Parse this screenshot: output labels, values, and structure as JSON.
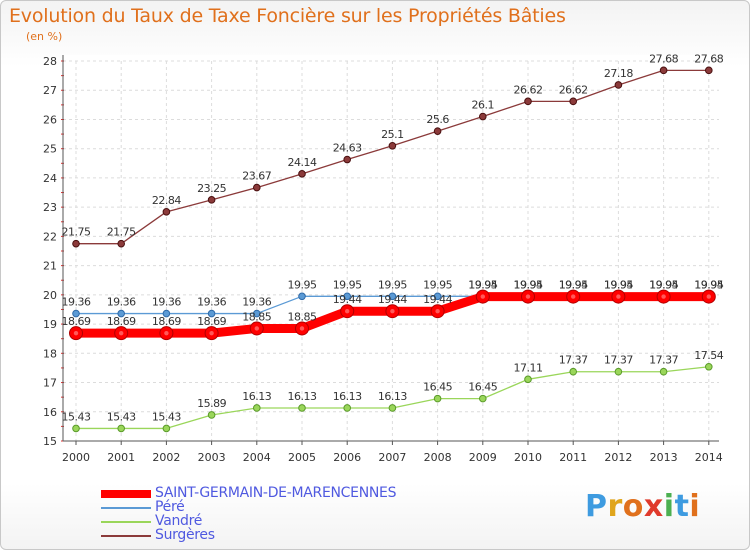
{
  "title": "Evolution du Taux de Taxe Foncière sur les Propriétés Bâties",
  "unit_label": "(en %)",
  "logo": {
    "text": "Proxiti",
    "letters": [
      "P",
      "r",
      "o",
      "x",
      "i",
      "t",
      "i"
    ],
    "colors": [
      "#3e9be0",
      "#e0a51c",
      "#e0701c",
      "#e03a2c",
      "#4caf50",
      "#3e9be0",
      "#e0701c"
    ]
  },
  "chart_data": {
    "type": "line",
    "title": "Evolution du Taux de Taxe Foncière sur les Propriétés Bâties",
    "ylabel": "(en %)",
    "xlabel": "",
    "ylim": [
      15,
      28
    ],
    "yticks": [
      15,
      16,
      17,
      18,
      19,
      20,
      21,
      22,
      23,
      24,
      25,
      26,
      27,
      28
    ],
    "x": [
      2000,
      2001,
      2002,
      2003,
      2004,
      2005,
      2006,
      2007,
      2008,
      2009,
      2010,
      2011,
      2012,
      2013,
      2014
    ],
    "grid": true,
    "legend_position": "bottom-left",
    "series": [
      {
        "name": "SAINT-GERMAIN-DE-MARENCENNES",
        "color": "#ff0000",
        "style": "thick",
        "values": [
          18.69,
          18.69,
          18.69,
          18.69,
          18.85,
          18.85,
          19.44,
          19.44,
          19.44,
          19.94,
          19.94,
          19.94,
          19.94,
          19.94,
          19.94
        ],
        "labels": [
          "18.69",
          "18.69",
          "18.69",
          "18.69",
          "18.85",
          "18.85",
          "19.44",
          "19.44",
          "19.44",
          "19.94",
          "19.94",
          "19.94",
          "19.94",
          "19.94",
          "19.94"
        ]
      },
      {
        "name": "Péré",
        "color": "#5b9ad5",
        "style": "thin",
        "values": [
          19.36,
          19.36,
          19.36,
          19.36,
          19.36,
          19.95,
          19.95,
          19.95,
          19.95,
          19.95,
          19.95,
          19.95,
          19.95,
          19.95,
          19.95
        ],
        "labels": [
          "19.36",
          "19.36",
          "19.36",
          "19.36",
          "19.36",
          "19.95",
          "19.95",
          "19.95",
          "19.95",
          "19.95",
          "19.95",
          "19.95",
          "19.95",
          "19.95",
          "19.95"
        ]
      },
      {
        "name": "Vandré",
        "color": "#9ad65a",
        "style": "thin",
        "values": [
          15.43,
          15.43,
          15.43,
          15.89,
          16.13,
          16.13,
          16.13,
          16.13,
          16.45,
          16.45,
          17.11,
          17.37,
          17.37,
          17.37,
          17.54
        ],
        "labels": [
          "15.43",
          "15.43",
          "15.43",
          "15.89",
          "16.13",
          "16.13",
          "16.13",
          "16.13",
          "16.45",
          "16.45",
          "17.11",
          "17.37",
          "17.37",
          "17.37",
          "17.54"
        ]
      },
      {
        "name": "Surgères",
        "color": "#8b3a3a",
        "style": "thin",
        "values": [
          21.75,
          21.75,
          22.84,
          23.25,
          23.67,
          24.14,
          24.63,
          25.1,
          25.6,
          26.1,
          26.62,
          26.62,
          27.18,
          27.68,
          27.68
        ],
        "labels": [
          "21.75",
          "21.75",
          "22.84",
          "23.25",
          "23.67",
          "24.14",
          "24.63",
          "25.1",
          "25.6",
          "26.1",
          "26.62",
          "26.62",
          "27.18",
          "27.68",
          "27.68"
        ]
      }
    ]
  }
}
